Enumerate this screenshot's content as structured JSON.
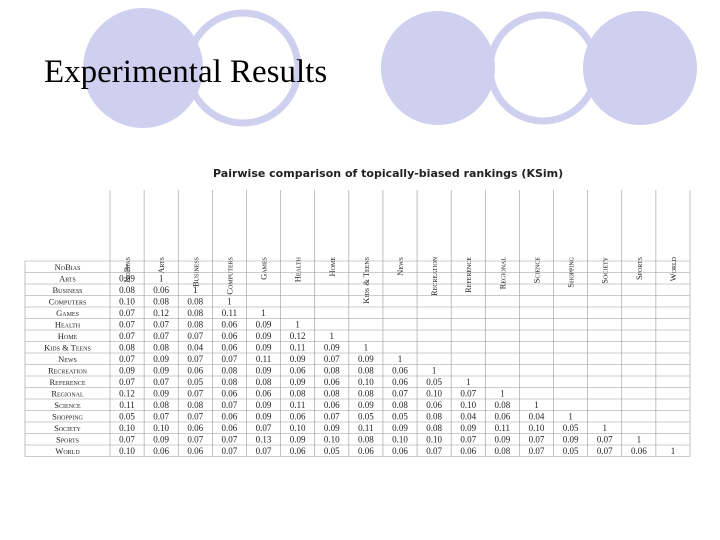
{
  "title": "Experimental Results",
  "table": {
    "caption": "Pairwise comparison of topically-biased rankings (KSim)",
    "columns": [
      "NoBias",
      "Arts",
      "Business",
      "Computers",
      "Games",
      "Health",
      "Home",
      "Kids & Teens",
      "News",
      "Recreation",
      "Reference",
      "Regional",
      "Science",
      "Shopping",
      "Society",
      "Sports",
      "World"
    ],
    "rows": [
      {
        "label": "NoBias",
        "cells": [
          "1"
        ]
      },
      {
        "label": "Arts",
        "cells": [
          "0.09",
          "1"
        ]
      },
      {
        "label": "Business",
        "cells": [
          "0.08",
          "0.06",
          "1"
        ]
      },
      {
        "label": "Computers",
        "cells": [
          "0.10",
          "0.08",
          "0.08",
          "1"
        ]
      },
      {
        "label": "Games",
        "cells": [
          "0.07",
          "0.12",
          "0.08",
          "0.11",
          "1"
        ]
      },
      {
        "label": "Health",
        "cells": [
          "0.07",
          "0.07",
          "0.08",
          "0.06",
          "0.09",
          "1"
        ]
      },
      {
        "label": "Home",
        "cells": [
          "0.07",
          "0.07",
          "0.07",
          "0.06",
          "0.09",
          "0.12",
          "1"
        ]
      },
      {
        "label": "Kids & Teens",
        "cells": [
          "0.08",
          "0.08",
          "0.04",
          "0.06",
          "0.09",
          "0.11",
          "0.09",
          "1"
        ]
      },
      {
        "label": "News",
        "cells": [
          "0.07",
          "0.09",
          "0.07",
          "0.07",
          "0.11",
          "0.09",
          "0.07",
          "0.09",
          "1"
        ]
      },
      {
        "label": "Recreation",
        "cells": [
          "0.09",
          "0.09",
          "0.06",
          "0.08",
          "0.09",
          "0.06",
          "0.08",
          "0.08",
          "0.06",
          "1"
        ]
      },
      {
        "label": "Reference",
        "cells": [
          "0.07",
          "0.07",
          "0.05",
          "0.08",
          "0.08",
          "0.09",
          "0.06",
          "0.10",
          "0.06",
          "0.05",
          "1"
        ]
      },
      {
        "label": "Regional",
        "cells": [
          "0.12",
          "0.09",
          "0.07",
          "0.06",
          "0.06",
          "0.08",
          "0.08",
          "0.08",
          "0.07",
          "0.10",
          "0.07",
          "1"
        ]
      },
      {
        "label": "Science",
        "cells": [
          "0.11",
          "0.08",
          "0.08",
          "0.07",
          "0.09",
          "0.11",
          "0.06",
          "0.09",
          "0.08",
          "0.06",
          "0.10",
          "0.08",
          "1"
        ]
      },
      {
        "label": "Shopping",
        "cells": [
          "0.05",
          "0.07",
          "0.07",
          "0.06",
          "0.09",
          "0.06",
          "0.07",
          "0.05",
          "0.05",
          "0.08",
          "0.04",
          "0.06",
          "0.04",
          "1"
        ]
      },
      {
        "label": "Society",
        "cells": [
          "0.10",
          "0.10",
          "0.06",
          "0.06",
          "0.07",
          "0.10",
          "0.09",
          "0.11",
          "0.09",
          "0.08",
          "0.09",
          "0.11",
          "0.10",
          "0.05",
          "1"
        ]
      },
      {
        "label": "Sports",
        "cells": [
          "0.07",
          "0.09",
          "0.07",
          "0.07",
          "0.13",
          "0.09",
          "0.10",
          "0.08",
          "0.10",
          "0.10",
          "0.07",
          "0.09",
          "0.07",
          "0.09",
          "0.07",
          "1"
        ]
      },
      {
        "label": "World",
        "cells": [
          "0.10",
          "0.06",
          "0.06",
          "0.07",
          "0.07",
          "0.06",
          "0.05",
          "0.06",
          "0.06",
          "0.07",
          "0.06",
          "0.08",
          "0.07",
          "0.05",
          "0.07",
          "0.06",
          "1"
        ]
      }
    ]
  }
}
